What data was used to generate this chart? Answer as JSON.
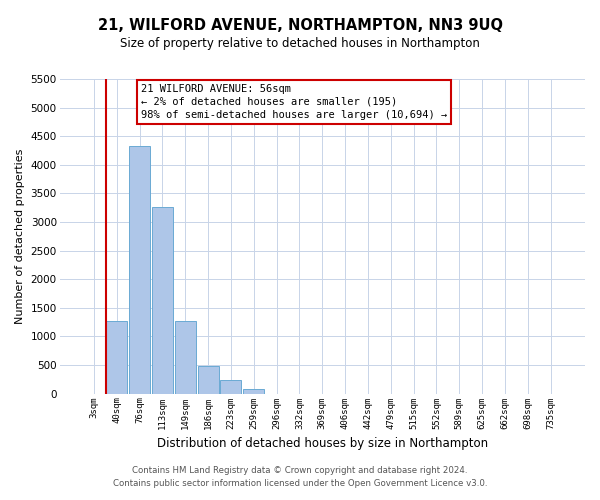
{
  "title": "21, WILFORD AVENUE, NORTHAMPTON, NN3 9UQ",
  "subtitle": "Size of property relative to detached houses in Northampton",
  "xlabel": "Distribution of detached houses by size in Northampton",
  "ylabel": "Number of detached properties",
  "bar_color": "#aec6e8",
  "bar_edge_color": "#6aaad4",
  "highlight_line_color": "#cc0000",
  "annotation_box_color": "#cc0000",
  "background_color": "#ffffff",
  "grid_color": "#c8d4e8",
  "bin_labels": [
    "3sqm",
    "40sqm",
    "76sqm",
    "113sqm",
    "149sqm",
    "186sqm",
    "223sqm",
    "259sqm",
    "296sqm",
    "332sqm",
    "369sqm",
    "406sqm",
    "442sqm",
    "479sqm",
    "515sqm",
    "552sqm",
    "589sqm",
    "625sqm",
    "662sqm",
    "698sqm",
    "735sqm"
  ],
  "bin_values": [
    0,
    1270,
    4330,
    3260,
    1275,
    480,
    240,
    80,
    0,
    0,
    0,
    0,
    0,
    0,
    0,
    0,
    0,
    0,
    0,
    0,
    0
  ],
  "annotation_line1": "21 WILFORD AVENUE: 56sqm",
  "annotation_line2": "← 2% of detached houses are smaller (195)",
  "annotation_line3": "98% of semi-detached houses are larger (10,694) →",
  "ylim": [
    0,
    5500
  ],
  "yticks": [
    0,
    500,
    1000,
    1500,
    2000,
    2500,
    3000,
    3500,
    4000,
    4500,
    5000,
    5500
  ],
  "footer_line1": "Contains HM Land Registry data © Crown copyright and database right 2024.",
  "footer_line2": "Contains public sector information licensed under the Open Government Licence v3.0."
}
